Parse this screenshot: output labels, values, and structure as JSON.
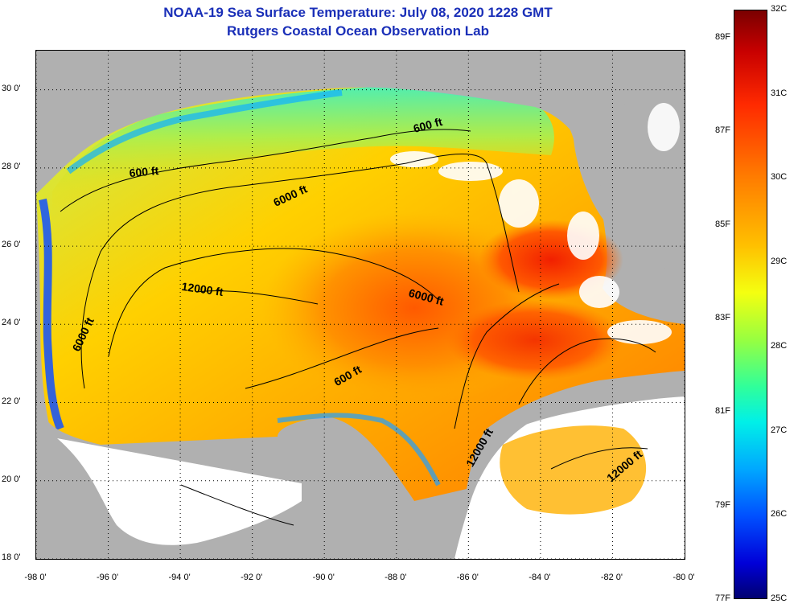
{
  "title": {
    "line1": "NOAA-19 Sea Surface Temperature:  July 08, 2020 1228 GMT",
    "line2": "Rutgers Coastal Ocean Observation Lab"
  },
  "map": {
    "lon_range": [
      -98,
      -80
    ],
    "lat_range": [
      18,
      31
    ],
    "lat_ticks": [
      {
        "value": 30,
        "label": "30 0'"
      },
      {
        "value": 28,
        "label": "28 0'"
      },
      {
        "value": 26,
        "label": "26 0'"
      },
      {
        "value": 24,
        "label": "24 0'"
      },
      {
        "value": 22,
        "label": "22 0'"
      },
      {
        "value": 20,
        "label": "20 0'"
      },
      {
        "value": 18,
        "label": "18 0'"
      }
    ],
    "lon_ticks": [
      {
        "value": -98,
        "label": "-98 0'"
      },
      {
        "value": -96,
        "label": "-96 0'"
      },
      {
        "value": -94,
        "label": "-94 0'"
      },
      {
        "value": -92,
        "label": "-92 0'"
      },
      {
        "value": -90,
        "label": "-90 0'"
      },
      {
        "value": -88,
        "label": "-88 0'"
      },
      {
        "value": -86,
        "label": "-86 0'"
      },
      {
        "value": -84,
        "label": "-84 0'"
      },
      {
        "value": -82,
        "label": "-82 0'"
      },
      {
        "value": -80,
        "label": "-80 0'"
      }
    ],
    "contour_labels": [
      {
        "text": "600 ft",
        "lon": -87.1,
        "lat": 29.0,
        "angle": -15
      },
      {
        "text": "600 ft",
        "lon": -95.0,
        "lat": 27.8,
        "angle": -5
      },
      {
        "text": "6000 ft",
        "lon": -90.9,
        "lat": 27.2,
        "angle": -25
      },
      {
        "text": "12000 ft",
        "lon": -93.4,
        "lat": 24.8,
        "angle": 8
      },
      {
        "text": "6000 ft",
        "lon": -87.2,
        "lat": 24.6,
        "angle": 15
      },
      {
        "text": "6000 ft",
        "lon": -96.6,
        "lat": 23.7,
        "angle": -65
      },
      {
        "text": "600 ft",
        "lon": -89.3,
        "lat": 22.6,
        "angle": -30
      },
      {
        "text": "12000 ft",
        "lon": -85.6,
        "lat": 20.8,
        "angle": -60
      },
      {
        "text": "12000 ft",
        "lon": -81.6,
        "lat": 20.3,
        "angle": -40
      }
    ],
    "land_color": "#b0b0b0",
    "cloud_color": "#ffffff"
  },
  "colorbar": {
    "celsius": [
      {
        "value": 32,
        "label": "32C"
      },
      {
        "value": 31,
        "label": "31C"
      },
      {
        "value": 30,
        "label": "30C"
      },
      {
        "value": 29,
        "label": "29C"
      },
      {
        "value": 28,
        "label": "28C"
      },
      {
        "value": 27,
        "label": "27C"
      },
      {
        "value": 26,
        "label": "26C"
      },
      {
        "value": 25,
        "label": "25C"
      }
    ],
    "fahrenheit": [
      {
        "value": 89,
        "label": "89F"
      },
      {
        "value": 87,
        "label": "87F"
      },
      {
        "value": 85,
        "label": "85F"
      },
      {
        "value": 83,
        "label": "83F"
      },
      {
        "value": 81,
        "label": "81F"
      },
      {
        "value": 79,
        "label": "79F"
      },
      {
        "value": 77,
        "label": "77F"
      }
    ],
    "min_c": 25,
    "max_c": 32
  }
}
